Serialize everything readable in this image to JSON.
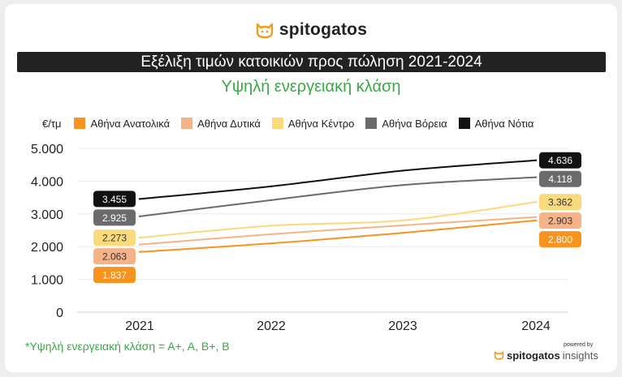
{
  "brand": {
    "name": "spitogatos"
  },
  "header": {
    "title": "Εξέλιξη τιμών κατοικιών προς πώληση 2021-2024",
    "subtitle": "Υψηλή ενεργειακή κλάση"
  },
  "legend": {
    "unit": "€/τμ"
  },
  "footnote": "*Υψηλή ενεργειακή κλάση = Α+, Α, Β+, Β",
  "footer": {
    "powered_by": "powered by",
    "brand": "spitogatos",
    "suffix": "insights"
  },
  "colors": {
    "accent_green": "#3aa845",
    "title_bg": "#222222",
    "logo_orange": "#f29a1f"
  },
  "chart_data": {
    "type": "line",
    "categories": [
      "2021",
      "2022",
      "2023",
      "2024"
    ],
    "y_ticks": [
      "0",
      "1.000",
      "2.000",
      "3.000",
      "4.000",
      "5.000"
    ],
    "ylim": [
      0,
      5000
    ],
    "grid": true,
    "series": [
      {
        "name": "Αθήνα Ανατολικά",
        "color": "#f7931e",
        "label_color": "#ffffff",
        "values": [
          1837,
          2100,
          2420,
          2800
        ],
        "start_label": "1.837",
        "end_label": "2.800"
      },
      {
        "name": "Αθήνα Δυτικά",
        "color": "#f5b387",
        "label_color": "#333333",
        "values": [
          2063,
          2380,
          2650,
          2903
        ],
        "start_label": "2.063",
        "end_label": "2.903"
      },
      {
        "name": "Αθήνα Κέντρο",
        "color": "#fbd97d",
        "label_color": "#333333",
        "values": [
          2273,
          2640,
          2800,
          3362
        ],
        "start_label": "2.273",
        "end_label": "3.362"
      },
      {
        "name": "Αθήνα Βόρεια",
        "color": "#6b6b6b",
        "label_color": "#ffffff",
        "values": [
          2925,
          3420,
          3880,
          4118
        ],
        "start_label": "2.925",
        "end_label": "4.118"
      },
      {
        "name": "Αθήνα Νότια",
        "color": "#111111",
        "label_color": "#ffffff",
        "values": [
          3455,
          3840,
          4320,
          4636
        ],
        "start_label": "3.455",
        "end_label": "4.636"
      }
    ]
  }
}
